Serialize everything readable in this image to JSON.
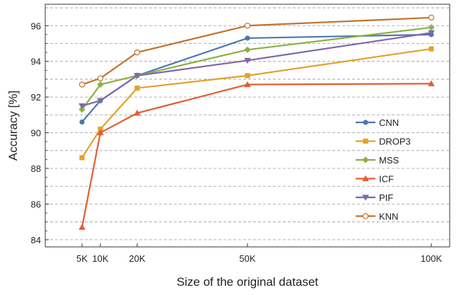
{
  "chart_data": {
    "type": "line",
    "title": "",
    "xlabel": "Size of the original dataset",
    "ylabel": "Accuracy [%]",
    "x": [
      5,
      10,
      20,
      50,
      100
    ],
    "x_tick_labels": [
      "5K",
      "10K",
      "20K",
      "50K",
      "100K"
    ],
    "xlim": [
      -5,
      105
    ],
    "ylim": [
      83.6,
      97.2
    ],
    "y_ticks": [
      84,
      86,
      88,
      90,
      92,
      94,
      96
    ],
    "grid": "horizontal dashed",
    "legend_position": "right",
    "series": [
      {
        "name": "CNN",
        "color": "#4a78b0",
        "marker": "circle",
        "values": [
          90.6,
          91.8,
          93.2,
          95.3,
          95.5
        ]
      },
      {
        "name": "DROP3",
        "color": "#e1a22c",
        "marker": "square",
        "values": [
          88.6,
          90.2,
          92.5,
          93.2,
          94.7
        ]
      },
      {
        "name": "MSS",
        "color": "#8cb040",
        "marker": "diamond",
        "values": [
          91.3,
          92.7,
          93.2,
          94.65,
          95.9
        ]
      },
      {
        "name": "ICF",
        "color": "#e25d33",
        "marker": "triangle-up",
        "values": [
          84.7,
          90.0,
          91.1,
          92.7,
          92.75
        ]
      },
      {
        "name": "PIF",
        "color": "#8067ab",
        "marker": "triangle-down",
        "values": [
          91.5,
          91.8,
          93.2,
          94.05,
          95.6
        ]
      },
      {
        "name": "KNN",
        "color": "#c1722a",
        "marker": "open-circle",
        "values": [
          92.7,
          93.05,
          94.5,
          96.0,
          96.45
        ]
      }
    ]
  }
}
